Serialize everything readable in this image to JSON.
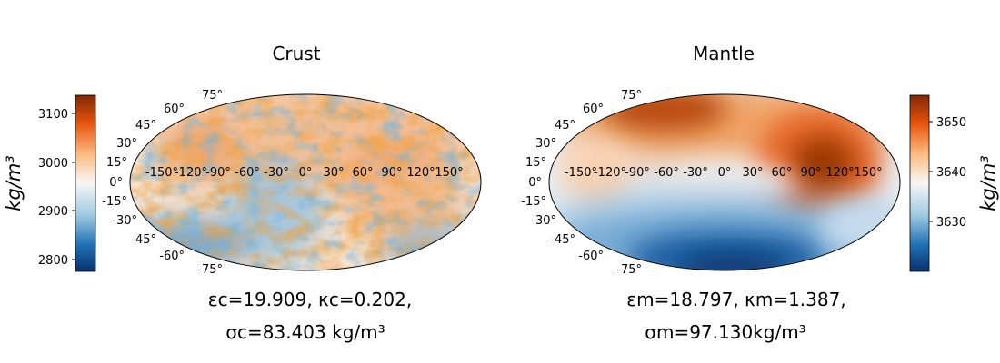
{
  "figure": {
    "panels": [
      {
        "id": "crust",
        "title": "Crust",
        "colorbar_side": "left",
        "colorbar_label": "kg/m³",
        "colorbar_ticks": [
          "3100",
          "3000",
          "2900",
          "2800"
        ],
        "longitude_labels": [
          "-150°",
          "-120°",
          "-90°",
          "-60°",
          "-30°",
          "0°",
          "30°",
          "60°",
          "90°",
          "120°",
          "150°"
        ],
        "latitude_labels": [
          "75°",
          "60°",
          "45°",
          "30°",
          "15°",
          "0°",
          "-15°",
          "-30°",
          "-45°",
          "-60°",
          "-75°"
        ],
        "caption_line1": "εc=19.909, κc=0.202,",
        "caption_line2": "σc=83.403 kg/m³"
      },
      {
        "id": "mantle",
        "title": "Mantle",
        "colorbar_side": "right",
        "colorbar_label": "kg/m³",
        "colorbar_ticks": [
          "3650",
          "3640",
          "3630"
        ],
        "longitude_labels": [
          "-150°",
          "-120°",
          "-90°",
          "-60°",
          "-30°",
          "0°",
          "30°",
          "60°",
          "90°",
          "120°",
          "150°"
        ],
        "latitude_labels": [
          "75°",
          "60°",
          "45°",
          "30°",
          "15°",
          "0°",
          "-15°",
          "-30°",
          "-45°",
          "-60°",
          "-75°"
        ],
        "caption_line1": "εm=18.797, κm=1.387,",
        "caption_line2": "σm=97.130kg/m³"
      }
    ]
  },
  "colors": {
    "cmap_low": "#08306b",
    "cmap_mid": "#f7f7f7",
    "cmap_high": "#7f2704",
    "outline": "#000000"
  },
  "chart_data": [
    {
      "type": "heatmap",
      "title": "Crust",
      "projection": "mollweide",
      "colorbar_label": "kg/m³",
      "colorbar_range": [
        2775,
        3135
      ],
      "colorbar_ticks": [
        2800,
        2900,
        3000,
        3100
      ],
      "pattern": "small-scale random density field; more orange in the north and center, blue patches in the south and around 0°-60°W",
      "parameters": {
        "epsilon_c": 19.909,
        "kappa_c": 0.202,
        "sigma_c": 83.403
      }
    },
    {
      "type": "heatmap",
      "title": "Mantle",
      "projection": "mollweide",
      "colorbar_label": "kg/m³",
      "colorbar_range": [
        3620.5,
        3655.5
      ],
      "colorbar_ticks": [
        3630,
        3640,
        3650
      ],
      "pattern": "large-scale smooth field; dense (orange) band across the north and around 90°E, light (blue) region in the south with minimum near 0°,-75°",
      "parameters": {
        "epsilon_m": 18.797,
        "kappa_m": 1.387,
        "sigma_m": 97.13
      }
    }
  ]
}
